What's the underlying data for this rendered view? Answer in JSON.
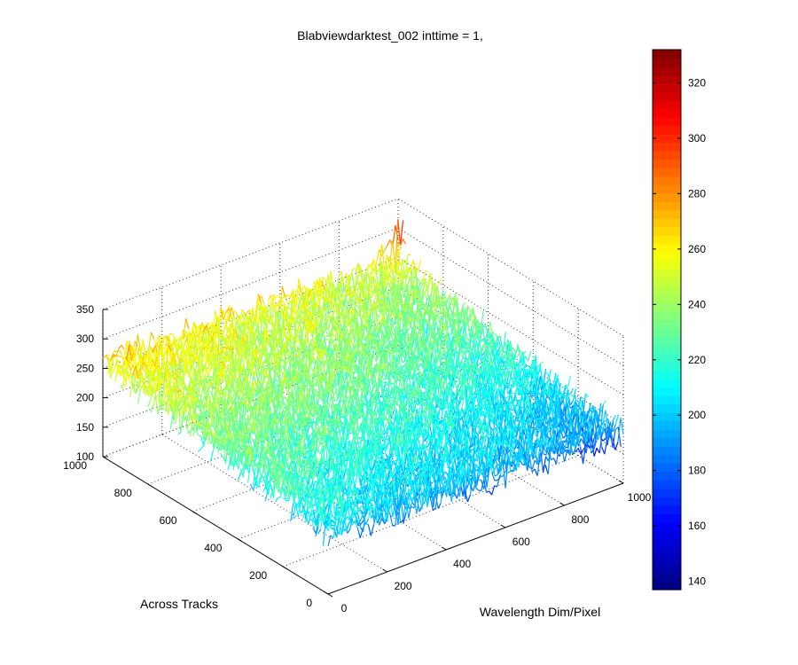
{
  "chart_data": {
    "type": "surface",
    "title": "Blabviewdarktest_002 inttime = 1,",
    "xlabel": "Wavelength Dim/Pixel",
    "ylabel": "Across Tracks",
    "zlabel": "",
    "x_ticks": [
      "0",
      "200",
      "400",
      "600",
      "800",
      "1000"
    ],
    "y_ticks": [
      "0",
      "200",
      "400",
      "600",
      "800",
      "1000"
    ],
    "z_ticks": [
      "100",
      "150",
      "200",
      "250",
      "300",
      "350"
    ],
    "xlim": [
      0,
      1000
    ],
    "ylim": [
      0,
      1000
    ],
    "zlim": [
      100,
      350
    ],
    "grid": true,
    "colormap": "jet",
    "colorbar": {
      "position": "right",
      "range": [
        137,
        332
      ],
      "ticks": [
        "140",
        "160",
        "180",
        "200",
        "220",
        "240",
        "260",
        "280",
        "300",
        "320"
      ]
    },
    "surface_trend": {
      "description_values": "mean level by corner (x, y) -> z",
      "corners": [
        {
          "x": 0,
          "y": 0,
          "z": 205
        },
        {
          "x": 1000,
          "y": 0,
          "z": 185
        },
        {
          "x": 0,
          "y": 1000,
          "z": 260
        },
        {
          "x": 1000,
          "y": 1000,
          "z": 245
        }
      ],
      "noise_amplitude": 25,
      "peak": {
        "x": 1000,
        "y": 1000,
        "z": 320
      }
    }
  }
}
